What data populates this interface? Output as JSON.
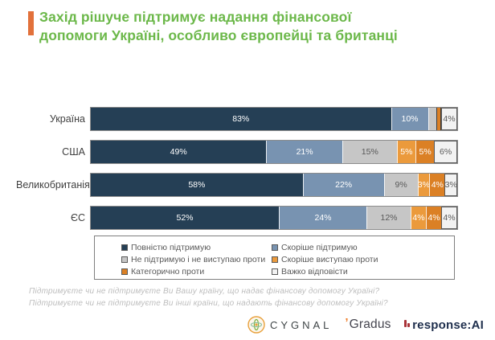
{
  "title": {
    "line1": "Захід рішуче підтримує надання фінансової",
    "line2": "допомоги Україні, особливо європейці та британці"
  },
  "accent_color": "#E2713B",
  "title_color": "#6CB84A",
  "chart_data": {
    "type": "bar",
    "variant": "horizontal-stacked",
    "categories": [
      "Україна",
      "США",
      "Великобританія",
      "ЄС"
    ],
    "series": [
      {
        "name": "Повністю підтримую",
        "color": "#253F55",
        "text_color": "#FFFFFF",
        "values": [
          83,
          49,
          58,
          52
        ]
      },
      {
        "name": "Скоріше підтримую",
        "color": "#7893B1",
        "text_color": "#FFFFFF",
        "values": [
          10,
          21,
          22,
          24
        ]
      },
      {
        "name": "Не підтримую і не виступаю проти",
        "color": "#C6C6C6",
        "text_color": "#595959",
        "values": [
          2,
          15,
          9,
          12
        ]
      },
      {
        "name": "Скоріше виступаю проти",
        "color": "#EB9A3C",
        "text_color": "#FFFFFF",
        "values": [
          0,
          5,
          3,
          4
        ]
      },
      {
        "name": "Категорично проти",
        "color": "#DB8025",
        "text_color": "#FFFFFF",
        "values": [
          1,
          5,
          4,
          4
        ]
      },
      {
        "name": "Важко відповісти",
        "color": "#F2F2F2",
        "text_color": "#595959",
        "values": [
          4,
          6,
          3,
          4
        ]
      }
    ],
    "value_suffix": "%",
    "label_min_value": 3,
    "xlim": [
      0,
      100
    ],
    "grid": false,
    "legend_position": "bottom-boxed"
  },
  "footnotes": [
    "Підтримуєте  чи не підтримуєте  Ви Вашу країну,  що надає фінансову  допомогу  Україні?",
    "Підтримуєте  чи не підтримуєте  Ви інші країни,  що надають  фінансову  допомогу  Україні?"
  ],
  "logos": {
    "cygnal": "CYGNAL",
    "gradus": "Gradus",
    "response_ai": "response:AI"
  }
}
